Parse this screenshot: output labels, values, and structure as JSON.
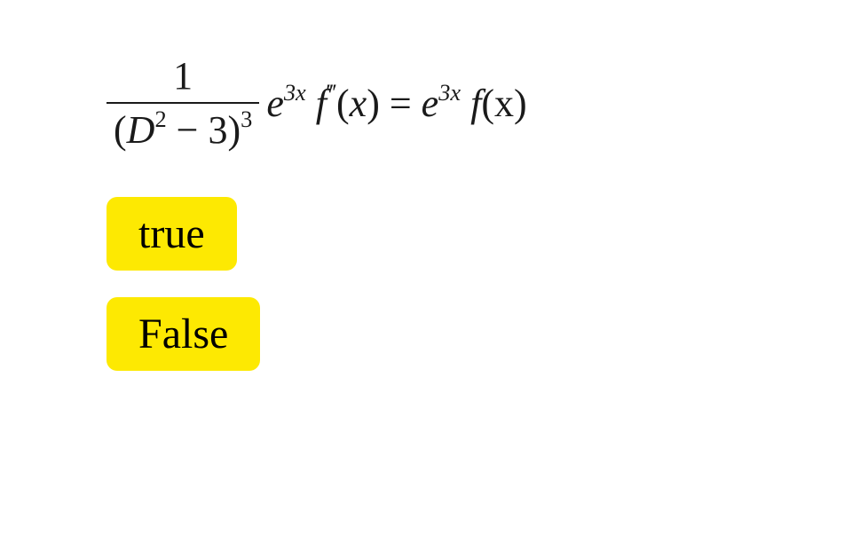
{
  "equation": {
    "numerator": "1",
    "denominator_D": "D",
    "denominator_D_exp": "2",
    "denominator_minus3": " − 3)",
    "denominator_outer_exp": "3",
    "open_paren": "(",
    "e": "e",
    "exp_3x_a": "3x",
    "f": "f",
    "triple_prime": "‴",
    "open_x": "(",
    "x": "x",
    "close_x": ") = ",
    "e2": "e",
    "exp_3x_b": "3x",
    "f2": "f",
    "tail": "(x)"
  },
  "options": {
    "true_label": "true",
    "false_label": "False"
  },
  "style": {
    "button_bg": "#fde902",
    "button_radius": 12,
    "button_fontsize": 48,
    "equation_fontsize": 44,
    "text_color": "#000000",
    "background": "#ffffff"
  }
}
